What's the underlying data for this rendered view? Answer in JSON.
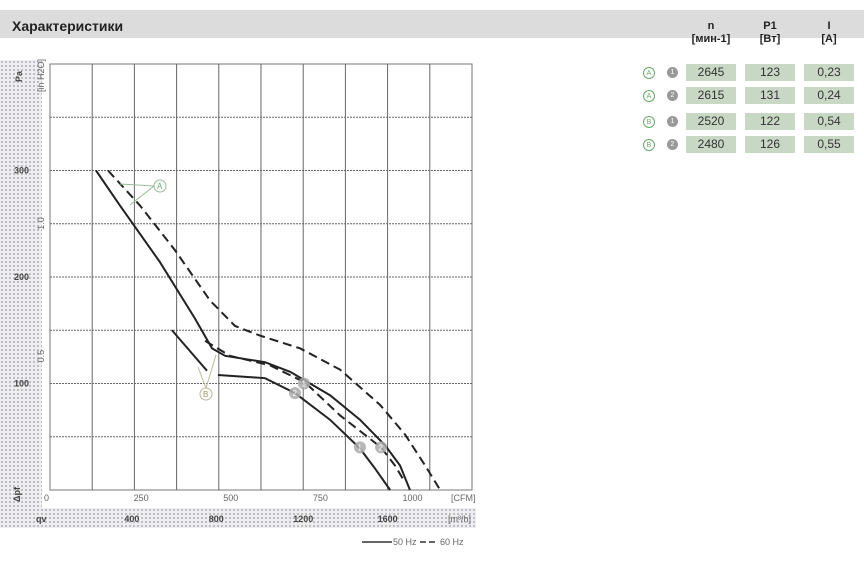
{
  "header": {
    "title": "Характеристики"
  },
  "table": {
    "columns": [
      {
        "name": "n",
        "unit": "[мин-1]"
      },
      {
        "name": "P1",
        "unit": "[Вт]"
      },
      {
        "name": "I",
        "unit": "[A]"
      }
    ],
    "rows": [
      {
        "curve": "A",
        "point": "1",
        "n": "2645",
        "p": "123",
        "i": "0,23"
      },
      {
        "curve": "A",
        "point": "2",
        "n": "2615",
        "p": "131",
        "i": "0,24"
      },
      {
        "curve": "B",
        "point": "1",
        "n": "2520",
        "p": "122",
        "i": "0,54"
      },
      {
        "curve": "B",
        "point": "2",
        "n": "2480",
        "p": "126",
        "i": "0,55"
      }
    ]
  },
  "chart_data": {
    "type": "line",
    "xlabel": "qv",
    "x_unit": "[m³/h]",
    "x2_unit": "[CFM]",
    "ylabel": "Δpf",
    "y_unit": "Pa",
    "y2_unit": "[in H2O]",
    "xlim": [
      0,
      2000
    ],
    "ylim": [
      0,
      400
    ],
    "grid": true,
    "x_ticks": [
      "400",
      "800",
      "1200",
      "1600"
    ],
    "x2_ticks": [
      "0",
      "250",
      "500",
      "750",
      "1000"
    ],
    "y_ticks": [
      "100",
      "200",
      "300"
    ],
    "y2_ticks": [
      "0.5",
      "1.0"
    ],
    "legend": [
      "50 Hz",
      "60 Hz"
    ],
    "series": [
      {
        "name": "A",
        "freq": "50 Hz",
        "style": "solid",
        "points": [
          [
            218,
            300
          ],
          [
            332,
            267
          ],
          [
            521,
            214
          ],
          [
            687,
            161
          ],
          [
            768,
            133
          ],
          [
            830,
            126
          ],
          [
            1019,
            120
          ],
          [
            1138,
            111
          ],
          [
            1327,
            89
          ],
          [
            1469,
            66
          ],
          [
            1588,
            42
          ],
          [
            1659,
            23
          ],
          [
            1706,
            0
          ]
        ]
      },
      {
        "name": "A",
        "freq": "60 Hz",
        "style": "dashed",
        "points": [
          [
            275,
            300
          ],
          [
            427,
            267
          ],
          [
            593,
            225
          ],
          [
            758,
            178
          ],
          [
            877,
            154
          ],
          [
            995,
            145
          ],
          [
            1185,
            133
          ],
          [
            1375,
            113
          ],
          [
            1564,
            80
          ],
          [
            1683,
            52
          ],
          [
            1778,
            23
          ],
          [
            1849,
            0
          ]
        ]
      },
      {
        "name": "B",
        "freq": "50 Hz",
        "style": "solid",
        "points": [
          [
            578,
            150
          ],
          [
            744,
            112
          ]
        ]
      },
      {
        "name": "B",
        "freq": "50 Hz",
        "style": "solid",
        "points": [
          [
            796,
            108
          ],
          [
            1019,
            105
          ],
          [
            1161,
            91
          ],
          [
            1327,
            66
          ],
          [
            1469,
            39
          ],
          [
            1541,
            20
          ],
          [
            1612,
            0
          ]
        ]
      },
      {
        "name": "B",
        "freq": "60 Hz",
        "style": "dashed",
        "points": [
          [
            735,
            140
          ],
          [
            853,
            126
          ],
          [
            1043,
            117
          ],
          [
            1209,
            101
          ],
          [
            1375,
            70
          ],
          [
            1569,
            40
          ],
          [
            1635,
            23
          ],
          [
            1683,
            7
          ]
        ]
      }
    ],
    "operating_points": [
      {
        "label": "1",
        "x": 1204,
        "y": 100
      },
      {
        "label": "2",
        "x": 1161,
        "y": 91
      },
      {
        "label": "1",
        "x": 1469,
        "y": 40
      },
      {
        "label": "2",
        "x": 1569,
        "y": 40
      }
    ],
    "annotations": [
      "A",
      "B"
    ]
  },
  "colors": {
    "header_bg": "#dcdcdc",
    "cell_bg": "#c8d8c4",
    "curve": "#222",
    "grid": "#555"
  }
}
